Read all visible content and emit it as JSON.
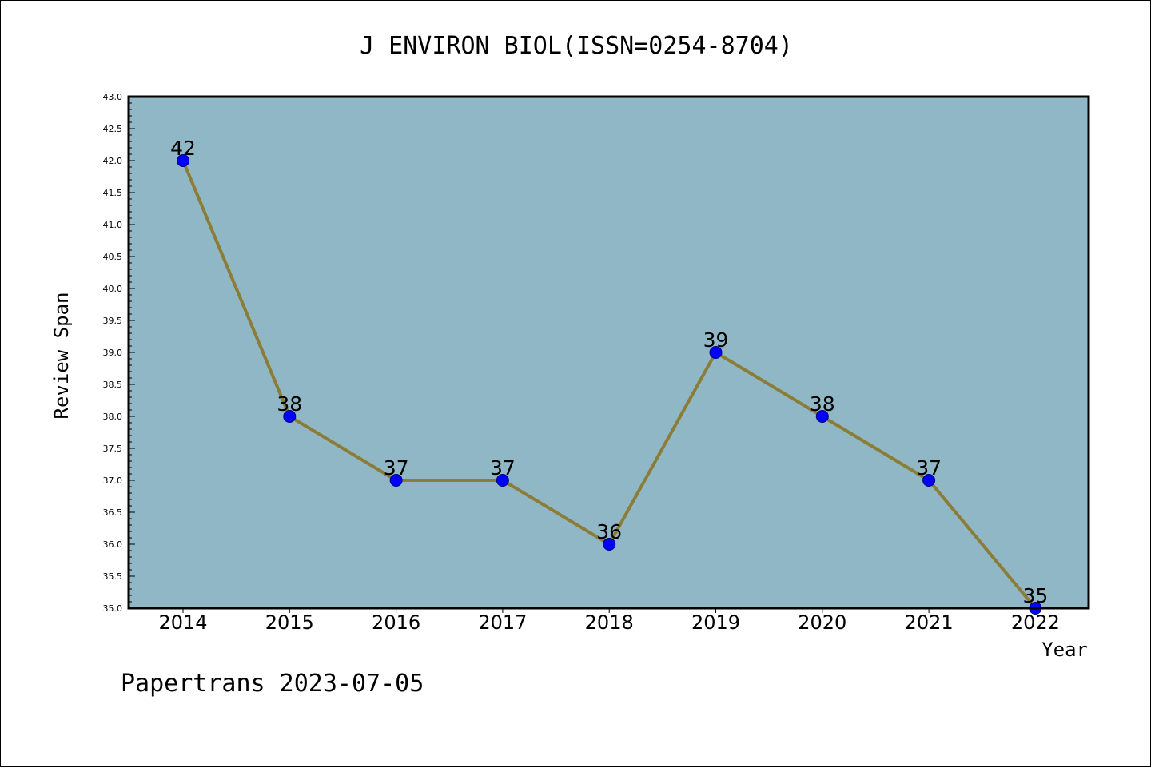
{
  "chart_data": {
    "type": "line",
    "title": "J ENVIRON BIOL(ISSN=0254-8704)",
    "xlabel": "Year",
    "ylabel": "Review Span",
    "categories": [
      "2014",
      "2015",
      "2016",
      "2017",
      "2018",
      "2019",
      "2020",
      "2021",
      "2022"
    ],
    "series": [
      {
        "values": [
          42,
          38,
          37,
          37,
          36,
          39,
          38,
          37,
          35
        ]
      }
    ],
    "ylim": [
      35.0,
      43.0
    ],
    "yticks": [
      "35.0",
      "35.5",
      "36.0",
      "36.5",
      "37.0",
      "37.5",
      "38.0",
      "38.5",
      "39.0",
      "39.5",
      "40.0",
      "40.5",
      "41.0",
      "41.5",
      "42.0",
      "42.5",
      "43.0"
    ],
    "grid": false,
    "colors": {
      "plot_background": "#8fb7c5",
      "line": "#8b7d37",
      "marker": "#0000ff",
      "marker_edge": "#000080"
    }
  },
  "footer": {
    "text": "Papertrans 2023-07-05"
  }
}
